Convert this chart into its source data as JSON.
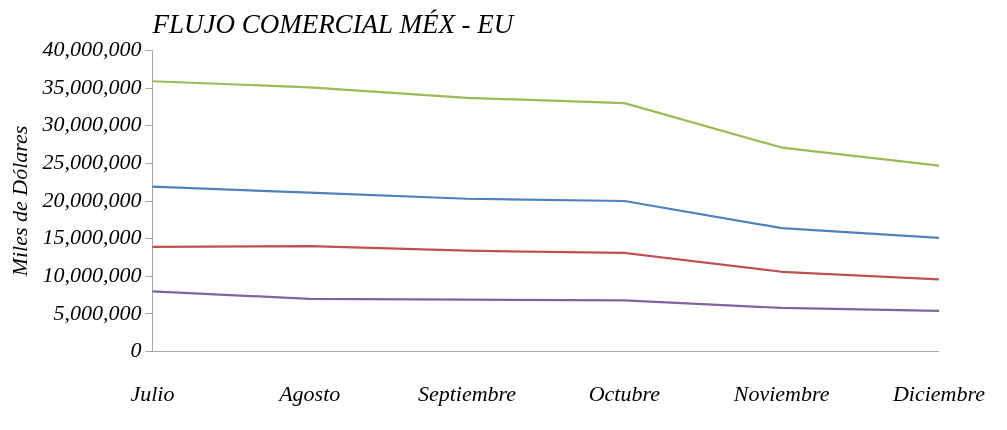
{
  "chart_data": {
    "type": "line",
    "title": "FLUJO COMERCIAL MÉX - EU",
    "ylabel": "Miles de Dólares",
    "categories": [
      "Julio",
      "Agosto",
      "Septiembre",
      "Octubre",
      "Noviembre",
      "Diciembre"
    ],
    "series": [
      {
        "color": "#9bbb59",
        "values": [
          35900000,
          35100000,
          33700000,
          33000000,
          27100000,
          24700000
        ]
      },
      {
        "color": "#4f81bd",
        "values": [
          21900000,
          21100000,
          20300000,
          20000000,
          16400000,
          15100000
        ]
      },
      {
        "color": "#c0504d",
        "values": [
          13900000,
          14000000,
          13400000,
          13100000,
          10600000,
          9600000
        ]
      },
      {
        "color": "#8064a2",
        "values": [
          8000000,
          7000000,
          6900000,
          6800000,
          5800000,
          5400000
        ]
      }
    ],
    "ylim": [
      0,
      40000000
    ],
    "yticks": [
      0,
      {
        "value": 5000000,
        "label": "5,000,000"
      },
      {
        "value": 10000000,
        "label": "10,000,000"
      },
      {
        "value": 15000000,
        "label": "15,000,000"
      },
      {
        "value": 20000000,
        "label": "20,000,000"
      },
      {
        "value": 25000000,
        "label": "25,000,000"
      },
      {
        "value": 30000000,
        "label": "30,000,000"
      },
      {
        "value": 35000000,
        "label": "35,000,000"
      },
      {
        "value": 40000000,
        "label": "40,000,000"
      }
    ],
    "marker": "none",
    "line_style": "solid"
  }
}
